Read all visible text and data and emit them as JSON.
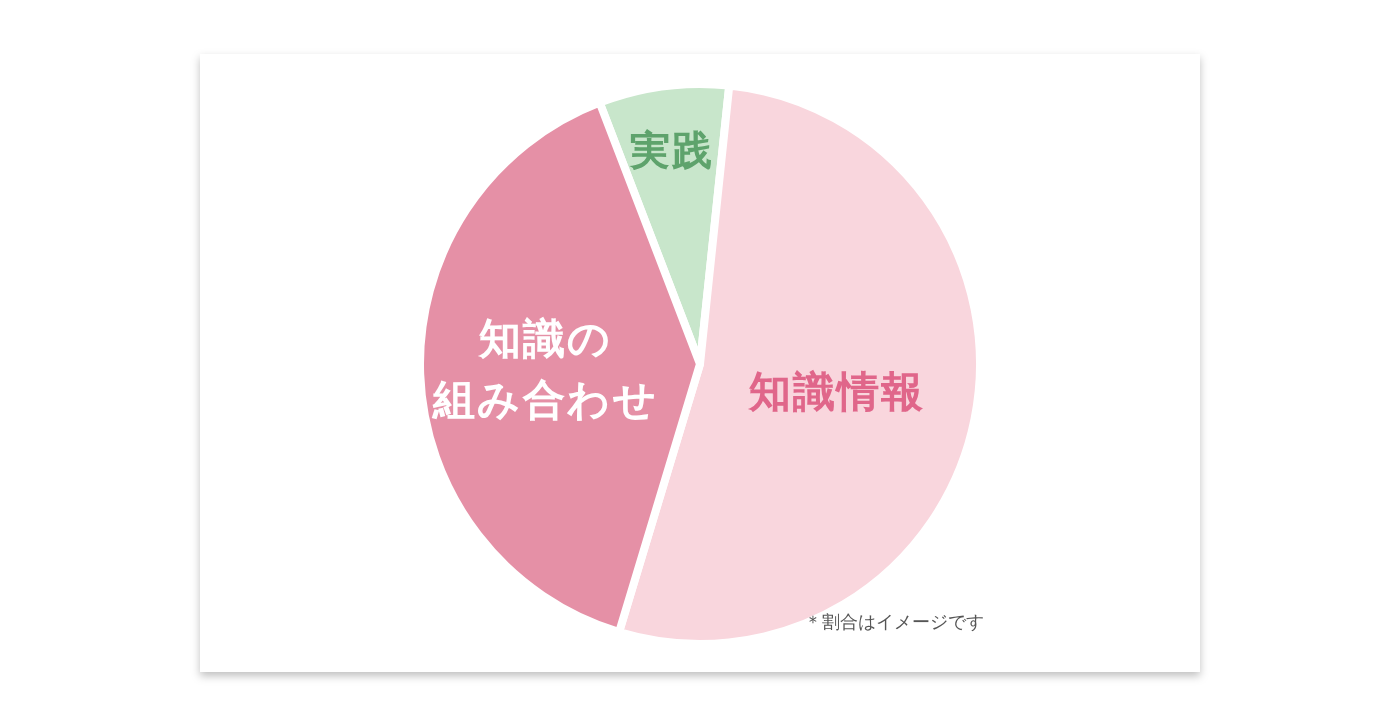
{
  "chart_data": {
    "type": "pie",
    "categories": [
      "実践",
      "知識情報",
      "知識の組み合わせ"
    ],
    "values": [
      7.5,
      53,
      39.5
    ],
    "colors": [
      "#c8e6cb",
      "#f9d6dd",
      "#e590a6"
    ],
    "annotations": [
      "＊割合はイメージです"
    ]
  }
}
